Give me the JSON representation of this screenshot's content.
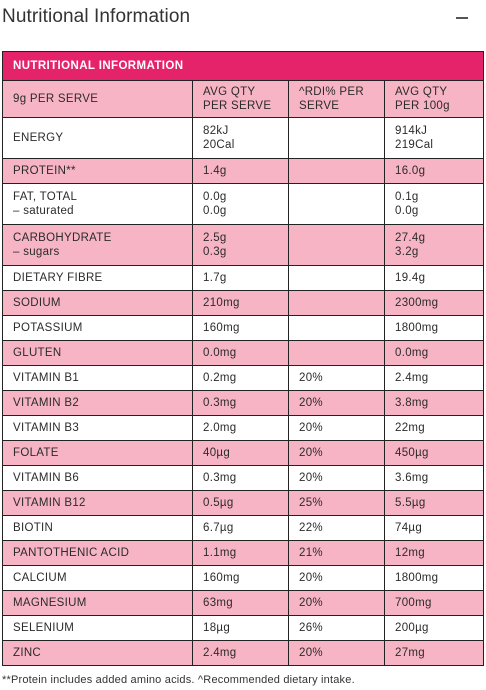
{
  "header": {
    "title": "Nutritional Information",
    "collapse_icon": "minus-icon"
  },
  "table": {
    "banner": "NUTRITIONAL INFORMATION",
    "columns": [
      "9g PER SERVE",
      "AVG QTY\nPER SERVE",
      "^RDI% PER\nSERVE",
      "AVG QTY\nPER 100g"
    ],
    "rows": [
      {
        "name": "ENERGY",
        "sub": "",
        "serve": "82kJ",
        "serve2": "20Cal",
        "rdi": "",
        "per100": "914kJ",
        "per100_2": "219Cal",
        "shade": "white"
      },
      {
        "name": "PROTEIN**",
        "sub": "",
        "serve": "1.4g",
        "serve2": "",
        "rdi": "",
        "per100": "16.0g",
        "per100_2": "",
        "shade": "pink"
      },
      {
        "name": "FAT, TOTAL",
        "sub": "– saturated",
        "serve": "0.0g",
        "serve2": "0.0g",
        "rdi": "",
        "per100": "0.1g",
        "per100_2": "0.0g",
        "shade": "white"
      },
      {
        "name": "CARBOHYDRATE",
        "sub": "– sugars",
        "serve": "2.5g",
        "serve2": "0.3g",
        "rdi": "",
        "per100": "27.4g",
        "per100_2": "3.2g",
        "shade": "pink"
      },
      {
        "name": "DIETARY FIBRE",
        "sub": "",
        "serve": "1.7g",
        "serve2": "",
        "rdi": "",
        "per100": "19.4g",
        "per100_2": "",
        "shade": "white"
      },
      {
        "name": "SODIUM",
        "sub": "",
        "serve": "210mg",
        "serve2": "",
        "rdi": "",
        "per100": "2300mg",
        "per100_2": "",
        "shade": "pink"
      },
      {
        "name": "POTASSIUM",
        "sub": "",
        "serve": "160mg",
        "serve2": "",
        "rdi": "",
        "per100": "1800mg",
        "per100_2": "",
        "shade": "white"
      },
      {
        "name": "GLUTEN",
        "sub": "",
        "serve": "0.0mg",
        "serve2": "",
        "rdi": "",
        "per100": "0.0mg",
        "per100_2": "",
        "shade": "pink"
      },
      {
        "name": "VITAMIN B1",
        "sub": "",
        "serve": "0.2mg",
        "serve2": "",
        "rdi": "20%",
        "per100": "2.4mg",
        "per100_2": "",
        "shade": "white"
      },
      {
        "name": "VITAMIN B2",
        "sub": "",
        "serve": "0.3mg",
        "serve2": "",
        "rdi": "20%",
        "per100": "3.8mg",
        "per100_2": "",
        "shade": "pink"
      },
      {
        "name": "VITAMIN B3",
        "sub": "",
        "serve": "2.0mg",
        "serve2": "",
        "rdi": "20%",
        "per100": "22mg",
        "per100_2": "",
        "shade": "white"
      },
      {
        "name": "FOLATE",
        "sub": "",
        "serve": "40µg",
        "serve2": "",
        "rdi": "20%",
        "per100": "450µg",
        "per100_2": "",
        "shade": "pink"
      },
      {
        "name": "VITAMIN B6",
        "sub": "",
        "serve": "0.3mg",
        "serve2": "",
        "rdi": "20%",
        "per100": "3.6mg",
        "per100_2": "",
        "shade": "white"
      },
      {
        "name": "VITAMIN B12",
        "sub": "",
        "serve": "0.5µg",
        "serve2": "",
        "rdi": "25%",
        "per100": "5.5µg",
        "per100_2": "",
        "shade": "pink"
      },
      {
        "name": "BIOTIN",
        "sub": "",
        "serve": "6.7µg",
        "serve2": "",
        "rdi": "22%",
        "per100": "74µg",
        "per100_2": "",
        "shade": "white"
      },
      {
        "name": "PANTOTHENIC ACID",
        "sub": "",
        "serve": "1.1mg",
        "serve2": "",
        "rdi": "21%",
        "per100": "12mg",
        "per100_2": "",
        "shade": "pink"
      },
      {
        "name": "CALCIUM",
        "sub": "",
        "serve": "160mg",
        "serve2": "",
        "rdi": "20%",
        "per100": "1800mg",
        "per100_2": "",
        "shade": "white"
      },
      {
        "name": "MAGNESIUM",
        "sub": "",
        "serve": "63mg",
        "serve2": "",
        "rdi": "20%",
        "per100": "700mg",
        "per100_2": "",
        "shade": "pink"
      },
      {
        "name": "SELENIUM",
        "sub": "",
        "serve": "18µg",
        "serve2": "",
        "rdi": "26%",
        "per100": "200µg",
        "per100_2": "",
        "shade": "white"
      },
      {
        "name": "ZINC",
        "sub": "",
        "serve": "2.4mg",
        "serve2": "",
        "rdi": "20%",
        "per100": "27mg",
        "per100_2": "",
        "shade": "pink"
      }
    ]
  },
  "footnote": "**Protein includes added amino acids. ^Recommended dietary intake.",
  "colors": {
    "banner": "#e5236b",
    "row_pink": "#f7b4c4",
    "row_white": "#ffffff",
    "border": "#222222"
  }
}
